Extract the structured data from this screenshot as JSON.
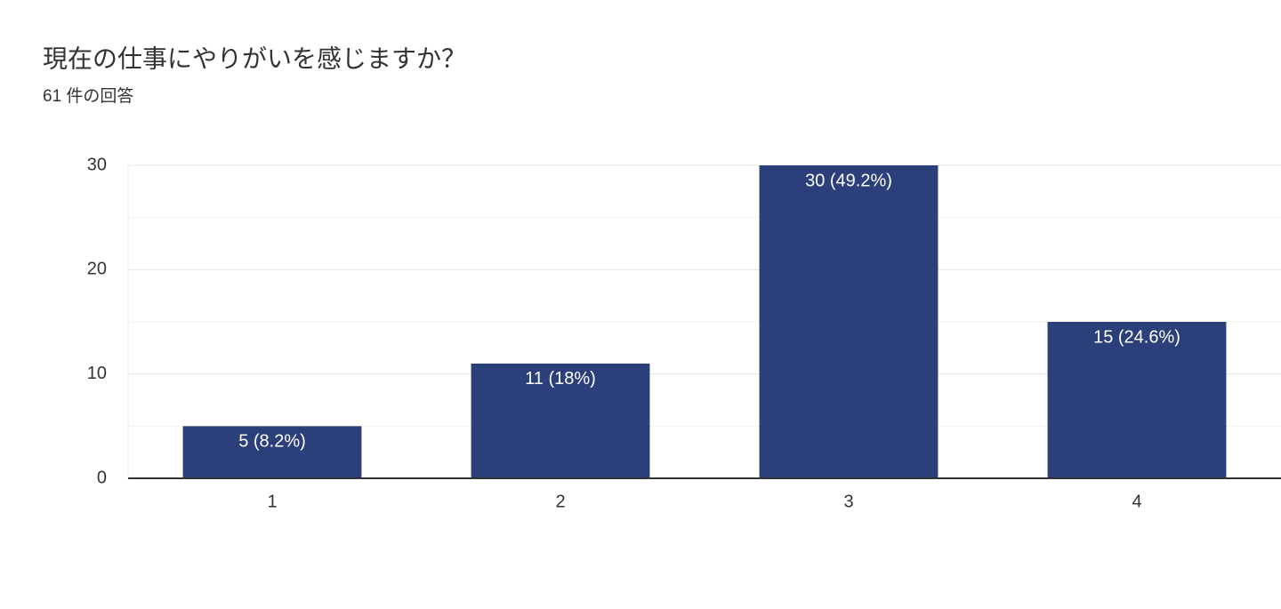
{
  "chart_data": {
    "type": "bar",
    "title": "現在の仕事にやりがいを感じますか？",
    "subtitle": "61 件の回答",
    "categories": [
      "1",
      "2",
      "3",
      "4"
    ],
    "values": [
      5,
      11,
      30,
      15
    ],
    "value_labels": [
      "5 (8.2%)",
      "11 (18%)",
      "30 (49.2%)",
      "15 (24.6%)"
    ],
    "color": "#2b3f7a",
    "ylim": [
      0,
      30
    ],
    "yticks": [
      0,
      10,
      20,
      30
    ],
    "minor_yticks": [
      5,
      15,
      25
    ],
    "grid": true
  }
}
